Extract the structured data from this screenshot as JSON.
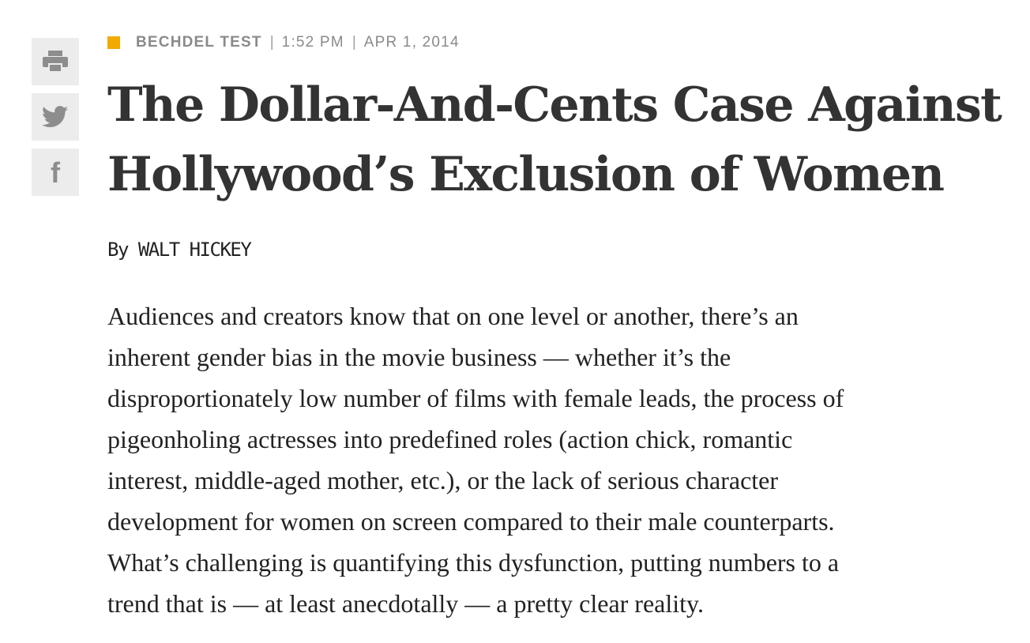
{
  "share": {
    "buttons": [
      {
        "icon": "print-icon",
        "action": "print"
      },
      {
        "icon": "twitter-icon",
        "action": "twitter"
      },
      {
        "icon": "facebook-icon",
        "action": "facebook",
        "glyph": "f"
      }
    ],
    "icon_color": "#8d8d8d",
    "background": "#ececec"
  },
  "article": {
    "tag_color": "#f2a900",
    "section": "BECHDEL TEST",
    "separator": "|",
    "time": "1:52 PM",
    "date": "APR 1, 2014",
    "headline_lines": [
      "The Dollar-And-Cents Case Against",
      "Hollywood’s Exclusion of Women"
    ],
    "byline_prefix": "By ",
    "author": "WALT HICKEY",
    "body_lines": [
      "Audiences and creators know that on one level or another, there’s an",
      "inherent gender bias in the movie business — whether it’s the",
      "disproportionately low number of films with female leads, the process of",
      "pigeonholing actresses into predefined roles (action chick, romantic",
      "interest, middle-aged mother, etc.), or the lack of serious character",
      "development for women on screen compared to their male counterparts.",
      "What’s challenging is quantifying this dysfunction, putting numbers to a",
      "trend that is — at least anecdotally — a pretty clear reality."
    ]
  }
}
